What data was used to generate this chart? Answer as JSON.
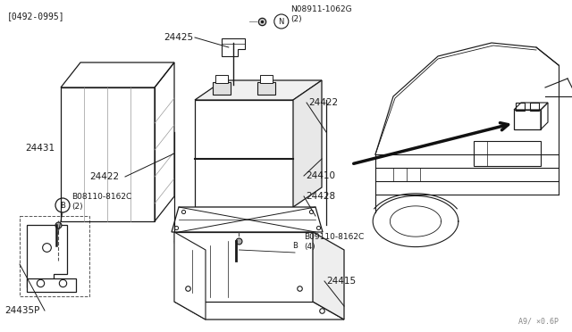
{
  "bg_color": "#ffffff",
  "line_color": "#1a1a1a",
  "date_code": "[0492-0995]",
  "watermark": "A9/ ×0.6P",
  "N_label": "N08911-1062G\n(2)",
  "B1_label": "B08110-8162C\n(2)",
  "B2_label": "B09110-8162C\n(4)",
  "p24431": "24431",
  "p24422a": "24422",
  "p24422b": "24422",
  "p24425": "24425",
  "p24410": "24410",
  "p24428": "24428",
  "p24415": "24415",
  "p24435P": "24435P"
}
